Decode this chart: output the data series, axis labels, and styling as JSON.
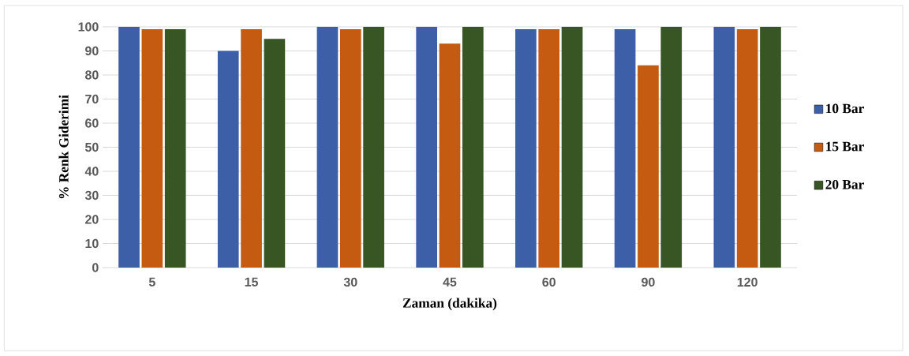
{
  "chart_data": {
    "type": "bar",
    "xlabel": "Zaman (dakika)",
    "ylabel": "% Renk Giderimi",
    "categories": [
      "5",
      "15",
      "30",
      "45",
      "60",
      "90",
      "120"
    ],
    "series": [
      {
        "name": "10 Bar",
        "color": "#3d5fa8",
        "values": [
          100,
          90,
          100,
          100,
          99,
          99,
          100
        ]
      },
      {
        "name": "15 Bar",
        "color": "#c55a11",
        "values": [
          99,
          99,
          99,
          93,
          99,
          84,
          99
        ]
      },
      {
        "name": "20 Bar",
        "color": "#375623",
        "values": [
          99,
          95,
          100,
          100,
          100,
          100,
          100
        ]
      }
    ],
    "ylim": [
      0,
      100
    ],
    "yticks": [
      0,
      10,
      20,
      30,
      40,
      50,
      60,
      70,
      80,
      90,
      100
    ],
    "grid": "y",
    "legend": "right"
  }
}
